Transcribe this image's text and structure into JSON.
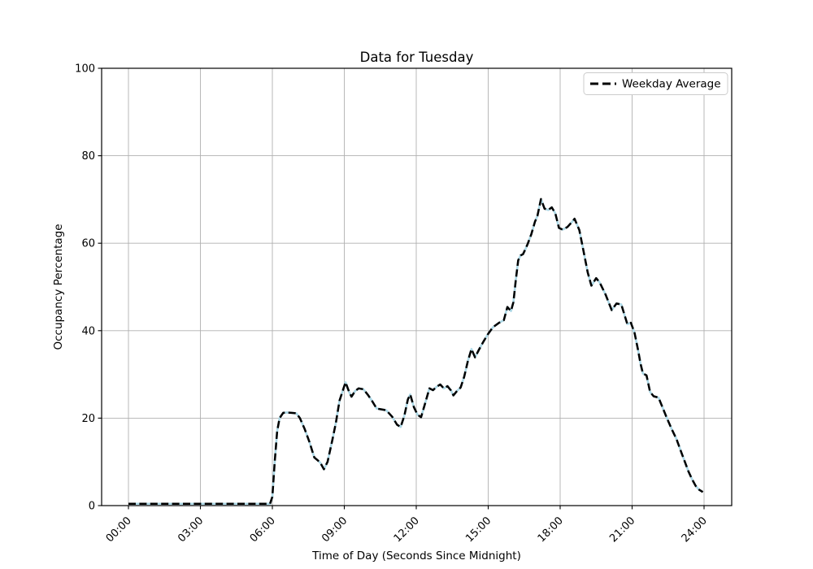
{
  "chart_data": {
    "type": "line",
    "title": "Data for Tuesday",
    "xlabel": "Time of Day (Seconds Since Midnight)",
    "ylabel": "Occupancy Percentage",
    "x_tick_labels": [
      "00:00",
      "03:00",
      "06:00",
      "09:00",
      "12:00",
      "15:00",
      "18:00",
      "21:00",
      "24:00"
    ],
    "x_tick_hours": [
      0,
      3,
      6,
      9,
      12,
      15,
      18,
      21,
      24
    ],
    "y_ticks": [
      0,
      20,
      40,
      60,
      80,
      100
    ],
    "ylim": [
      0,
      100
    ],
    "x_range_hours": [
      0,
      24
    ],
    "grid": true,
    "grid_color": "#b0b0b0",
    "legend": {
      "position": "upper right",
      "entries": [
        {
          "label": "Weekday Average",
          "color": "#000000",
          "dash": true
        }
      ]
    },
    "series": [
      {
        "name": "(unlabeled solid line)",
        "color": "#add8e6",
        "line_style": "solid",
        "line_width": 2.6,
        "points_source": "points"
      },
      {
        "name": "Weekday Average",
        "color": "#000000",
        "line_style": "dashed",
        "line_width": 2.5,
        "points_source": "points"
      }
    ],
    "points": [
      [
        0.0,
        0.4
      ],
      [
        0.5,
        0.4
      ],
      [
        1.0,
        0.4
      ],
      [
        1.5,
        0.4
      ],
      [
        2.0,
        0.4
      ],
      [
        2.5,
        0.4
      ],
      [
        3.0,
        0.4
      ],
      [
        3.5,
        0.4
      ],
      [
        4.0,
        0.4
      ],
      [
        4.5,
        0.4
      ],
      [
        5.0,
        0.4
      ],
      [
        5.5,
        0.4
      ],
      [
        5.9,
        0.4
      ],
      [
        6.0,
        2.0
      ],
      [
        6.1,
        10.0
      ],
      [
        6.2,
        17.0
      ],
      [
        6.3,
        20.0
      ],
      [
        6.45,
        21.2
      ],
      [
        6.6,
        21.3
      ],
      [
        6.8,
        21.2
      ],
      [
        7.0,
        21.1
      ],
      [
        7.15,
        20.0
      ],
      [
        7.35,
        17.5
      ],
      [
        7.55,
        14.5
      ],
      [
        7.75,
        11.0
      ],
      [
        7.9,
        10.3
      ],
      [
        8.0,
        9.8
      ],
      [
        8.15,
        8.3
      ],
      [
        8.3,
        10.0
      ],
      [
        8.5,
        15.0
      ],
      [
        8.65,
        19.0
      ],
      [
        8.8,
        24.0
      ],
      [
        8.95,
        26.5
      ],
      [
        9.05,
        28.2
      ],
      [
        9.2,
        26.0
      ],
      [
        9.3,
        24.9
      ],
      [
        9.45,
        26.2
      ],
      [
        9.6,
        26.8
      ],
      [
        9.8,
        26.6
      ],
      [
        10.0,
        25.2
      ],
      [
        10.15,
        24.0
      ],
      [
        10.35,
        22.2
      ],
      [
        10.55,
        22.0
      ],
      [
        10.75,
        21.8
      ],
      [
        11.0,
        20.3
      ],
      [
        11.2,
        18.5
      ],
      [
        11.35,
        18.0
      ],
      [
        11.5,
        20.5
      ],
      [
        11.65,
        24.3
      ],
      [
        11.75,
        25.4
      ],
      [
        11.9,
        22.5
      ],
      [
        12.05,
        20.8
      ],
      [
        12.2,
        20.2
      ],
      [
        12.35,
        23.0
      ],
      [
        12.55,
        26.8
      ],
      [
        12.7,
        26.4
      ],
      [
        12.85,
        27.2
      ],
      [
        13.0,
        27.7
      ],
      [
        13.15,
        26.8
      ],
      [
        13.3,
        27.3
      ],
      [
        13.45,
        26.3
      ],
      [
        13.55,
        25.2
      ],
      [
        13.7,
        26.2
      ],
      [
        13.85,
        27.0
      ],
      [
        14.0,
        29.5
      ],
      [
        14.15,
        33.0
      ],
      [
        14.3,
        35.8
      ],
      [
        14.45,
        33.9
      ],
      [
        14.6,
        35.5
      ],
      [
        14.8,
        37.5
      ],
      [
        15.0,
        39.3
      ],
      [
        15.2,
        40.8
      ],
      [
        15.45,
        41.8
      ],
      [
        15.65,
        42.4
      ],
      [
        15.8,
        45.4
      ],
      [
        15.95,
        44.5
      ],
      [
        16.05,
        46.5
      ],
      [
        16.15,
        51.5
      ],
      [
        16.25,
        56.1
      ],
      [
        16.35,
        57.2
      ],
      [
        16.45,
        57.5
      ],
      [
        16.55,
        58.6
      ],
      [
        16.65,
        59.9
      ],
      [
        16.8,
        62.1
      ],
      [
        16.95,
        64.9
      ],
      [
        17.05,
        66.2
      ],
      [
        17.2,
        70.1
      ],
      [
        17.35,
        67.9
      ],
      [
        17.5,
        67.6
      ],
      [
        17.65,
        68.2
      ],
      [
        17.8,
        66.8
      ],
      [
        17.95,
        63.5
      ],
      [
        18.1,
        63.1
      ],
      [
        18.3,
        63.7
      ],
      [
        18.5,
        64.9
      ],
      [
        18.6,
        65.6
      ],
      [
        18.8,
        63.0
      ],
      [
        19.0,
        57.5
      ],
      [
        19.15,
        53.3
      ],
      [
        19.3,
        50.3
      ],
      [
        19.5,
        52.0
      ],
      [
        19.65,
        51.0
      ],
      [
        19.9,
        48.2
      ],
      [
        20.15,
        44.7
      ],
      [
        20.35,
        46.2
      ],
      [
        20.55,
        46.0
      ],
      [
        20.8,
        41.5
      ],
      [
        20.95,
        41.8
      ],
      [
        21.1,
        39.5
      ],
      [
        21.25,
        35.5
      ],
      [
        21.35,
        32.5
      ],
      [
        21.45,
        30.2
      ],
      [
        21.6,
        29.8
      ],
      [
        21.75,
        26.0
      ],
      [
        21.9,
        25.0
      ],
      [
        22.1,
        24.7
      ],
      [
        22.3,
        22.0
      ],
      [
        22.45,
        20.0
      ],
      [
        22.65,
        17.5
      ],
      [
        22.85,
        15.2
      ],
      [
        23.05,
        12.2
      ],
      [
        23.2,
        10.0
      ],
      [
        23.35,
        7.8
      ],
      [
        23.5,
        6.0
      ],
      [
        23.65,
        4.5
      ],
      [
        23.8,
        3.6
      ],
      [
        23.95,
        3.1
      ]
    ]
  }
}
